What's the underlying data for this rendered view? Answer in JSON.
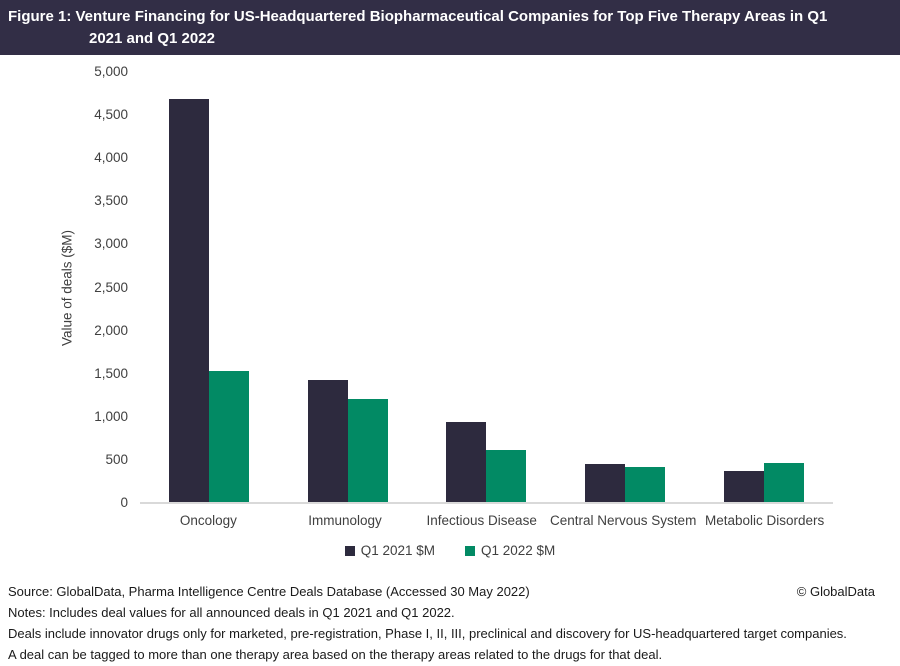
{
  "header": {
    "title_line1": "Figure 1: Venture Financing for US-Headquartered Biopharmaceutical Companies for Top Five Therapy Areas in Q1",
    "title_line2": "2021 and Q1 2022",
    "bg_color": "#322e46"
  },
  "chart_data": {
    "type": "bar",
    "title": "Figure 1: Venture Financing for US-Headquartered Biopharmaceutical Companies for Top Five Therapy Areas in Q1 2021 and Q1 2022",
    "categories": [
      "Oncology",
      "Immunology",
      "Infectious Disease",
      "Central Nervous System",
      "Metabolic Disorders"
    ],
    "series": [
      {
        "name": "Q1 2021 $M",
        "color": "#2d2a3e",
        "values": [
          4670,
          1420,
          930,
          440,
          360
        ]
      },
      {
        "name": "Q1 2022 $M",
        "color": "#028a64",
        "values": [
          1520,
          1200,
          600,
          410,
          450
        ]
      }
    ],
    "xlabel": "",
    "ylabel": "Value of deals ($M)",
    "ylim": [
      0,
      5000
    ],
    "ytick_step": 500,
    "ytick_labels": [
      "0",
      "500",
      "1,000",
      "1,500",
      "2,000",
      "2,500",
      "3,000",
      "3,500",
      "4,000",
      "4,500",
      "5,000"
    ],
    "grid": false,
    "legend_position": "bottom"
  },
  "footer": {
    "source": "Source: GlobalData, Pharma Intelligence Centre Deals Database (Accessed 30 May 2022)",
    "copyright": "© GlobalData",
    "notes": [
      "Notes: Includes deal values for all announced deals in Q1 2021 and Q1 2022.",
      "Deals include innovator drugs only for marketed, pre-registration, Phase I, II, III, preclinical and discovery for US-headquartered target companies.",
      "A deal can be tagged to more than one therapy area based on the therapy areas related to the drugs for that deal."
    ]
  }
}
